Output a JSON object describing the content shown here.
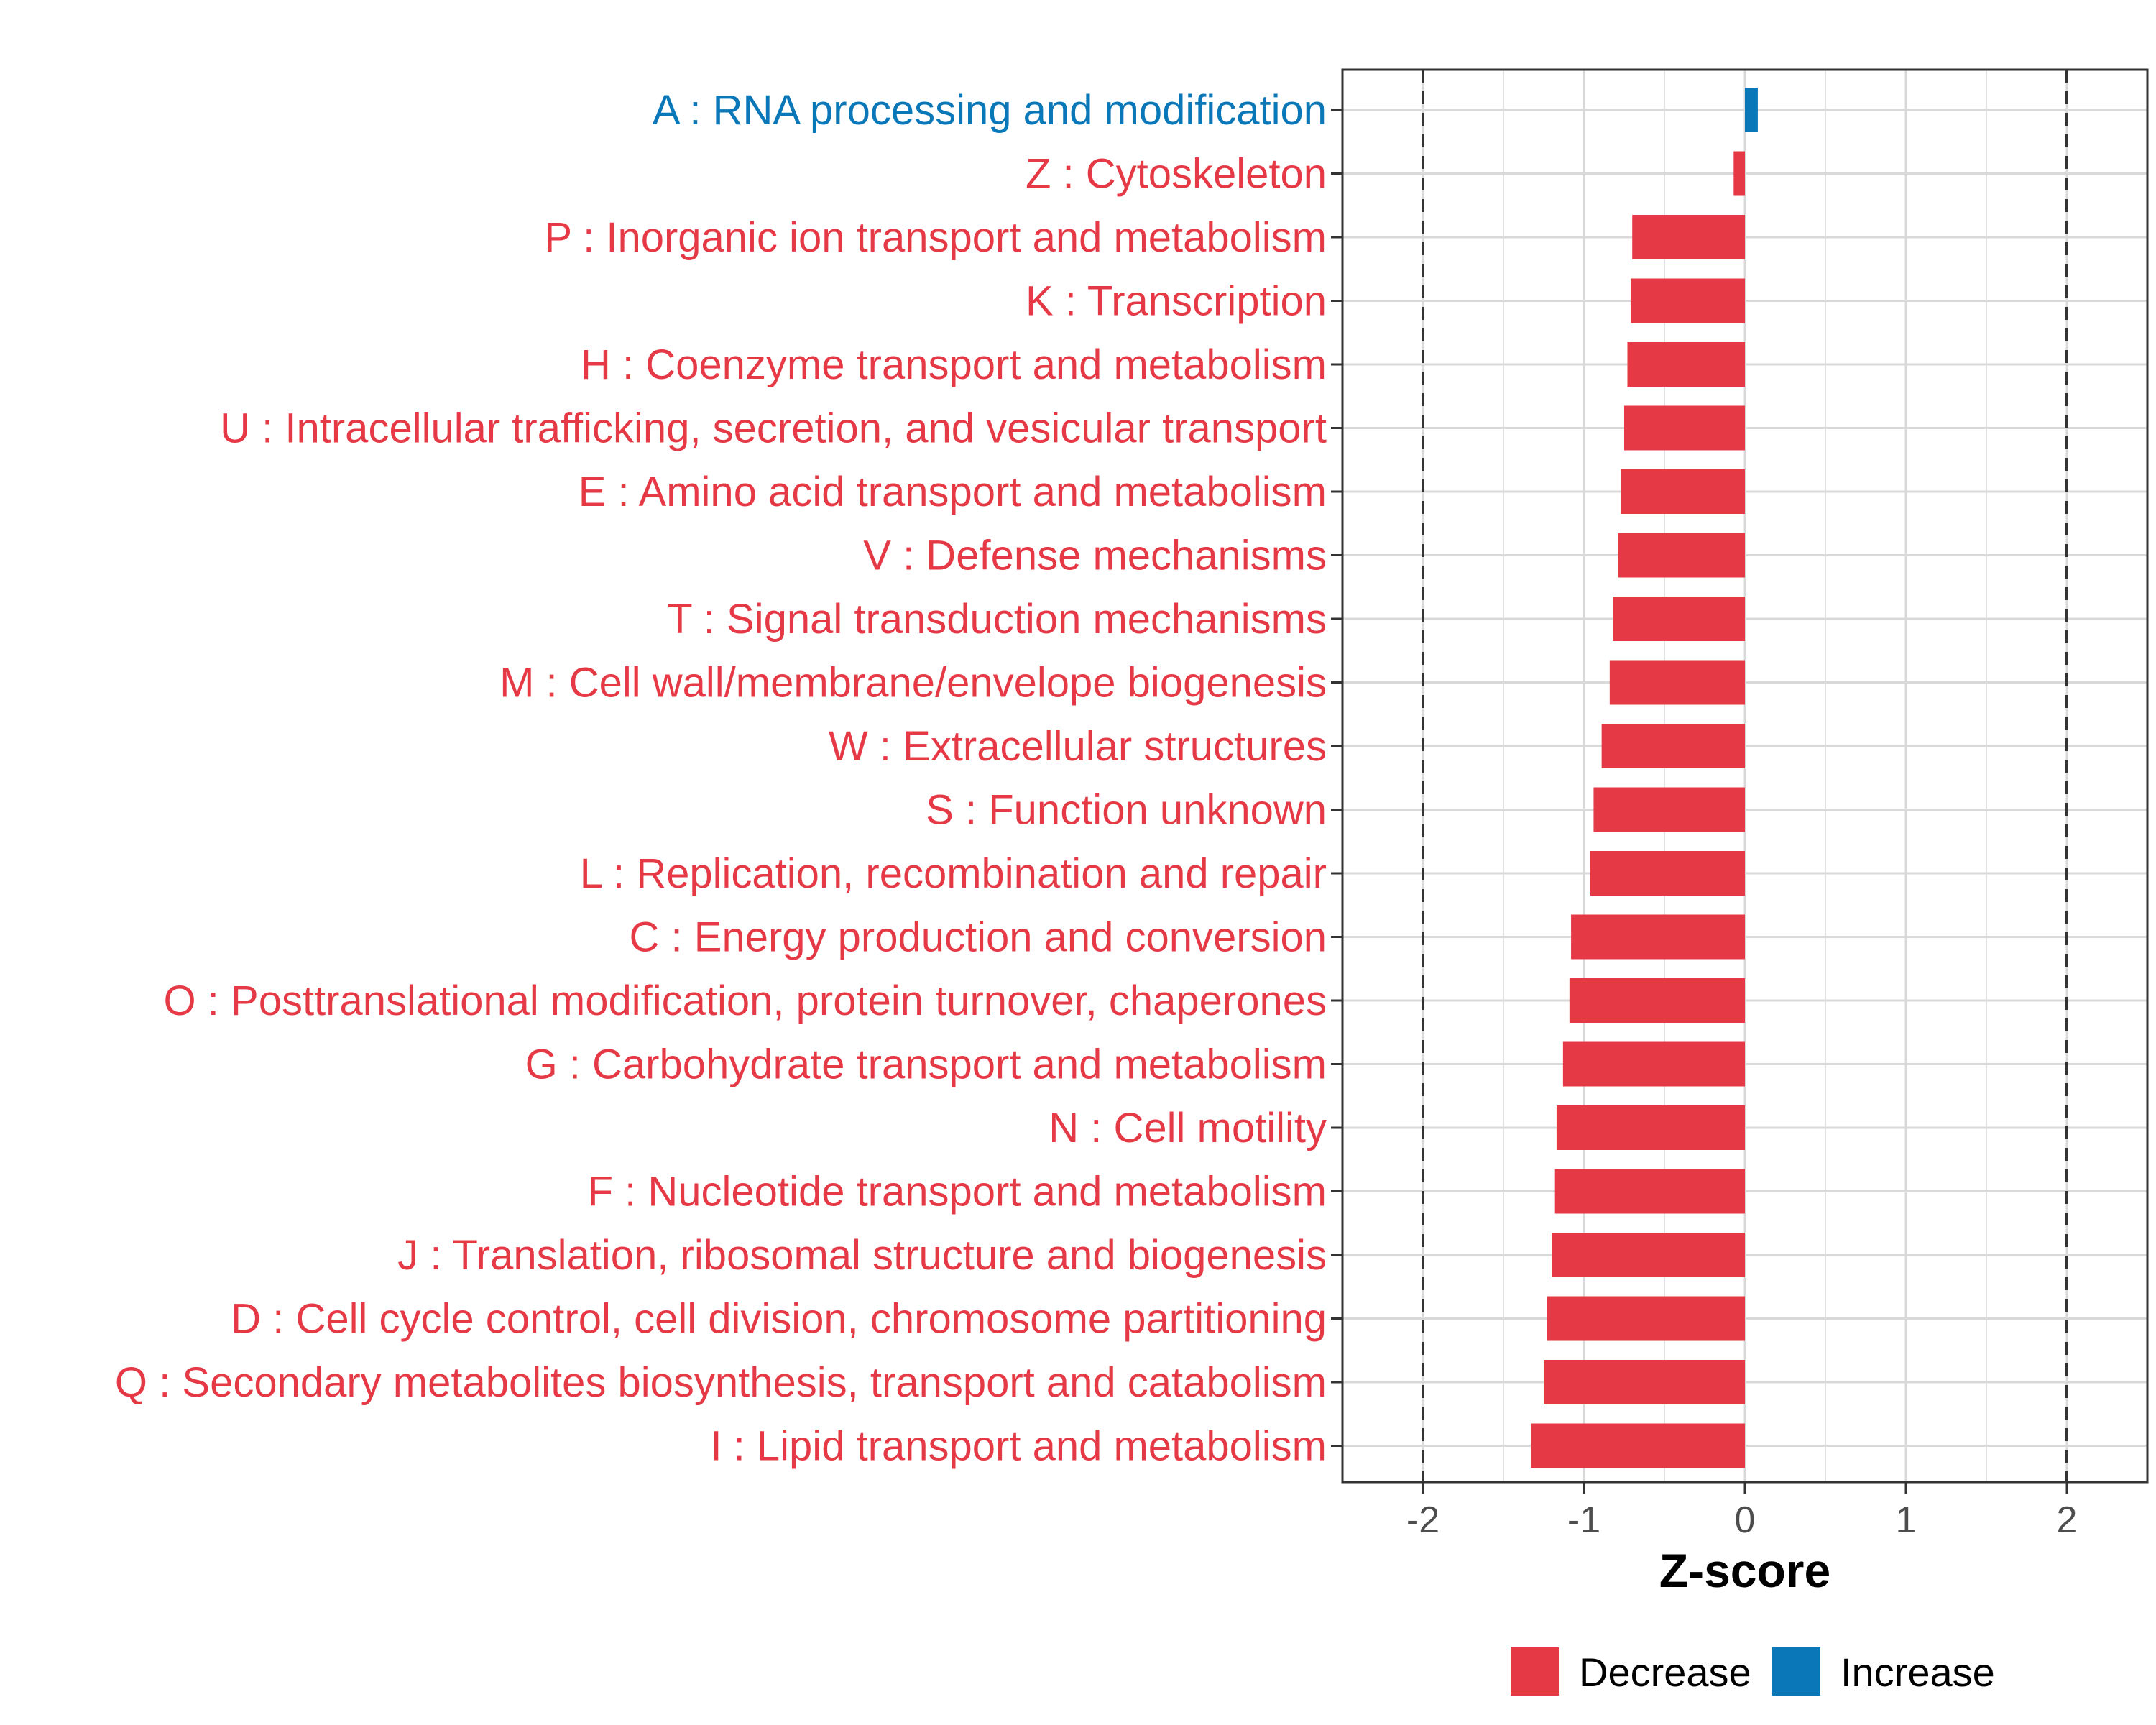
{
  "chart_data": {
    "type": "bar",
    "orientation": "horizontal",
    "categories": [
      "A : RNA processing and modification",
      "Z : Cytoskeleton",
      "P : Inorganic ion transport and metabolism",
      "K : Transcription",
      "H : Coenzyme transport and metabolism",
      "U : Intracellular trafficking, secretion, and vesicular transport",
      "E : Amino acid transport and metabolism",
      "V : Defense mechanisms",
      "T : Signal transduction mechanisms",
      "M : Cell wall/membrane/envelope biogenesis",
      "W : Extracellular structures",
      "S : Function unknown",
      "L : Replication, recombination and repair",
      "C : Energy production and conversion",
      "O : Posttranslational modification, protein turnover, chaperones",
      "G : Carbohydrate transport and metabolism",
      "N : Cell motility",
      "F : Nucleotide transport and metabolism",
      "J : Translation, ribosomal structure and biogenesis",
      "D : Cell cycle control, cell division, chromosome partitioning",
      "Q : Secondary metabolites biosynthesis, transport and catabolism",
      "I : Lipid transport and metabolism"
    ],
    "values": [
      0.08,
      -0.07,
      -0.7,
      -0.71,
      -0.73,
      -0.75,
      -0.77,
      -0.79,
      -0.82,
      -0.84,
      -0.89,
      -0.94,
      -0.96,
      -1.08,
      -1.09,
      -1.13,
      -1.17,
      -1.18,
      -1.2,
      -1.23,
      -1.25,
      -1.33
    ],
    "groups": [
      "Increase",
      "Decrease",
      "Decrease",
      "Decrease",
      "Decrease",
      "Decrease",
      "Decrease",
      "Decrease",
      "Decrease",
      "Decrease",
      "Decrease",
      "Decrease",
      "Decrease",
      "Decrease",
      "Decrease",
      "Decrease",
      "Decrease",
      "Decrease",
      "Decrease",
      "Decrease",
      "Decrease",
      "Decrease"
    ],
    "xlabel": "Z-score",
    "xlim": [
      -2.5,
      2.5
    ],
    "xticks": [
      -2,
      -1,
      0,
      1,
      2
    ],
    "xtick_labels": [
      "-2",
      "-1",
      "0",
      "1",
      "2"
    ],
    "reference_lines": [
      -2,
      2
    ],
    "grid": true,
    "legend": {
      "position": "bottom",
      "entries": [
        {
          "label": "Decrease",
          "color": "#e63946"
        },
        {
          "label": "Increase",
          "color": "#0a78b8"
        }
      ]
    }
  },
  "colors": {
    "decrease": "#e63946",
    "increase": "#0a78b8",
    "grid": "#d9d9d9",
    "axis_text": "#4d4d4d"
  }
}
